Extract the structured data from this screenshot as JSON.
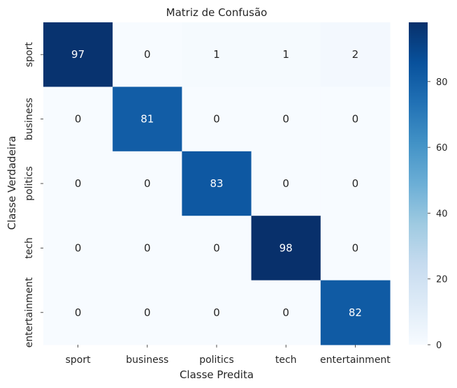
{
  "chart_data": {
    "type": "heatmap",
    "title": "Matriz de Confusão",
    "xlabel": "Classe Predita",
    "ylabel": "Classe Verdadeira",
    "x_categories": [
      "sport",
      "business",
      "politics",
      "tech",
      "entertainment"
    ],
    "y_categories": [
      "sport",
      "business",
      "politics",
      "tech",
      "entertainment"
    ],
    "values": [
      [
        97,
        0,
        1,
        1,
        2
      ],
      [
        0,
        81,
        0,
        0,
        0
      ],
      [
        0,
        0,
        83,
        0,
        0
      ],
      [
        0,
        0,
        0,
        98,
        0
      ],
      [
        0,
        0,
        0,
        0,
        82
      ]
    ],
    "colormap": "Blues",
    "vmin": 0,
    "vmax": 98,
    "colorbar_ticks": [
      0,
      20,
      40,
      60,
      80
    ],
    "annotation_color_light": "#ffffff",
    "annotation_color_dark": "#262626"
  }
}
